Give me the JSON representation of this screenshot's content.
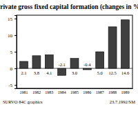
{
  "chart_data": {
    "type": "bar",
    "title": "Private gross fixed capital formation (changes in %)",
    "categories": [
      "1981",
      "1982",
      "1983",
      "1984",
      "1985",
      "1986",
      "1987",
      "1988",
      "1989"
    ],
    "values": [
      2.1,
      3.8,
      4.1,
      -2.1,
      3.0,
      -0.4,
      5.0,
      12.5,
      14.6
    ],
    "value_labels": [
      "2.1",
      "3.8",
      "4.1",
      "-2.1",
      "3.0",
      "-0.4",
      "5.0",
      "12.5",
      "14.6"
    ],
    "data_labels": true,
    "color": "#404040",
    "ylim": [
      -6,
      16
    ],
    "yticks": [
      -5,
      0,
      5,
      10,
      15
    ],
    "grid": false,
    "annotations": [
      "SURVO 84C graphics",
      "23.7.1992/SM"
    ]
  }
}
